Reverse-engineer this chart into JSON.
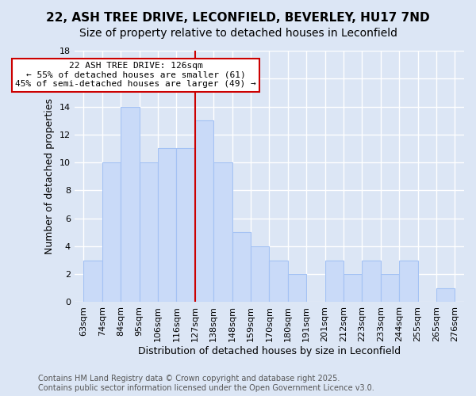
{
  "title_line1": "22, ASH TREE DRIVE, LECONFIELD, BEVERLEY, HU17 7ND",
  "title_line2": "Size of property relative to detached houses in Leconfield",
  "xlabel": "Distribution of detached houses by size in Leconfield",
  "ylabel": "Number of detached properties",
  "bin_labels": [
    "63sqm",
    "74sqm",
    "84sqm",
    "95sqm",
    "106sqm",
    "116sqm",
    "127sqm",
    "138sqm",
    "148sqm",
    "159sqm",
    "170sqm",
    "180sqm",
    "191sqm",
    "201sqm",
    "212sqm",
    "223sqm",
    "233sqm",
    "244sqm",
    "255sqm",
    "265sqm",
    "276sqm"
  ],
  "bar_values": [
    3,
    10,
    14,
    10,
    11,
    11,
    13,
    10,
    5,
    4,
    3,
    2,
    0,
    3,
    2,
    3,
    2,
    3,
    0,
    1
  ],
  "bar_color": "#c9daf8",
  "bar_edge_color": "#a4c2f4",
  "bar_linewidth": 0.8,
  "vline_color": "#cc0000",
  "annotation_text": "22 ASH TREE DRIVE: 126sqm\n← 55% of detached houses are smaller (61)\n45% of semi-detached houses are larger (49) →",
  "annotation_box_facecolor": "white",
  "annotation_box_edgecolor": "#cc0000",
  "ylim": [
    0,
    18
  ],
  "yticks": [
    0,
    2,
    4,
    6,
    8,
    10,
    12,
    14,
    16,
    18
  ],
  "background_color": "#dce6f5",
  "grid_color": "white",
  "footer_line1": "Contains HM Land Registry data © Crown copyright and database right 2025.",
  "footer_line2": "Contains public sector information licensed under the Open Government Licence v3.0.",
  "title_fontsize": 11,
  "subtitle_fontsize": 10,
  "axis_label_fontsize": 9,
  "tick_fontsize": 8,
  "annotation_fontsize": 8,
  "footer_fontsize": 7
}
